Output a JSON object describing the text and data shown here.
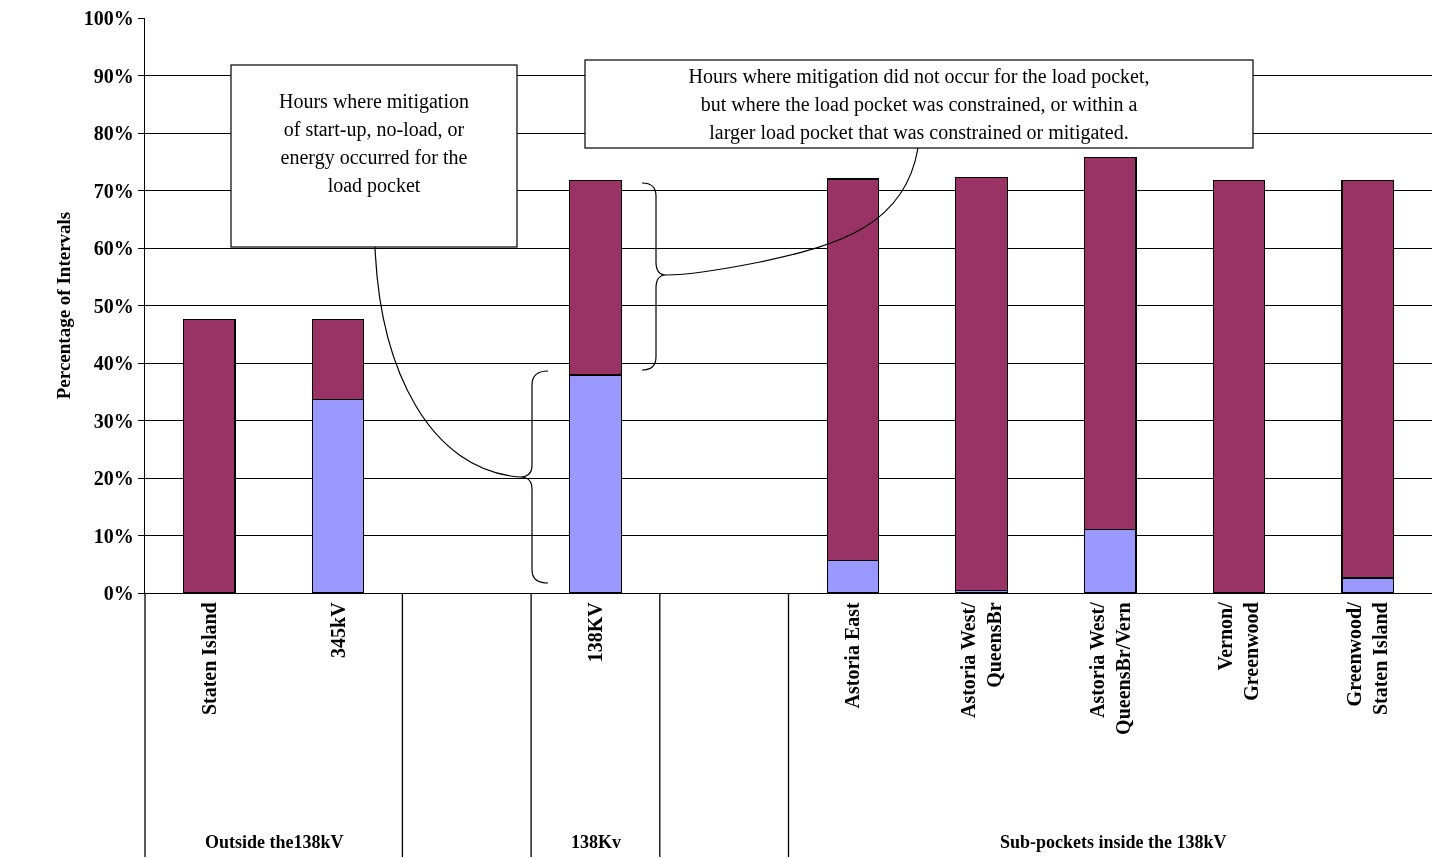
{
  "chart_data": {
    "type": "bar",
    "stacked": true,
    "ylabel": "Percentage of Intervals",
    "categories": [
      "Staten Island",
      "345kV",
      null,
      "138KV",
      null,
      "Astoria East",
      "Astoria West/ QueensBr",
      "Astoria West/ QueensBr/Vern",
      "Vernon/ Greenwood",
      "Greenwood/ Staten Island"
    ],
    "series": [
      {
        "color": "#9999ff",
        "values": [
          0,
          33.7,
          null,
          37.9,
          null,
          5.6,
          0.4,
          11.1,
          0,
          2.6
        ]
      },
      {
        "color": "#993366",
        "values": [
          47.5,
          13.9,
          null,
          33.8,
          null,
          66.4,
          71.9,
          64.7,
          71.7,
          69.1
        ]
      }
    ],
    "ylim": [
      0,
      100
    ],
    "yticks": [
      {
        "value": 0,
        "label": "0%"
      },
      {
        "value": 10,
        "label": "10%"
      },
      {
        "value": 20,
        "label": "20%"
      },
      {
        "value": 30,
        "label": "30%"
      },
      {
        "value": 40,
        "label": "40%"
      },
      {
        "value": 50,
        "label": "50%"
      },
      {
        "value": 60,
        "label": "60%"
      },
      {
        "value": 70,
        "label": "70%"
      },
      {
        "value": 80,
        "label": "80%"
      },
      {
        "value": 90,
        "label": "90%"
      },
      {
        "value": 100,
        "label": "100%"
      }
    ],
    "grid": "y",
    "annotations": [
      "Hours where mitigation of start-up, no-load, or energy occurred for the load pocket",
      "Hours where mitigation did not occur for the load pocket, but where the load pocket was constrained, or within a larger load pocket that was constrained or mitigated.",
      "Outside the138kV",
      "138Kv",
      "Sub-pockets inside the 138kV"
    ]
  }
}
